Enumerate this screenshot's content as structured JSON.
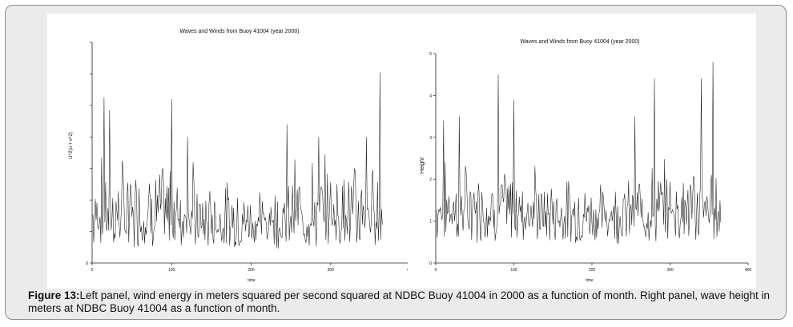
{
  "chart_data": [
    {
      "type": "line",
      "title": "Waves and Winds from Buoy 41004 (year 2000)",
      "xlabel": "time",
      "ylabel": "U^2(u + v^2)",
      "xlim": [
        0,
        400
      ],
      "ylim": [
        0,
        140
      ],
      "xticks": [
        0,
        100,
        200,
        300,
        400
      ],
      "yticks": [
        0,
        20,
        40,
        60,
        80,
        100,
        120,
        140
      ],
      "ytick_labels": [
        "0",
        "",
        "",
        "",
        "",
        "",
        "",
        ""
      ],
      "xtick_labels": [
        "0",
        "100",
        "200",
        "300",
        "400"
      ],
      "series": [
        {
          "color": "#1a1a1a",
          "x_start": 1,
          "x_end": 365,
          "baseline": 22,
          "spread": 40,
          "peaks": [
            [
              15,
              105
            ],
            [
              22,
              97
            ],
            [
              100,
              104
            ],
            [
              120,
              80
            ],
            [
              245,
              88
            ],
            [
              285,
              80
            ],
            [
              345,
              80
            ],
            [
              362,
              121
            ]
          ]
        }
      ],
      "grid": false
    },
    {
      "type": "line",
      "title": "Waves and Winds from Buoy 41004 (year 2000)",
      "xlabel": "time",
      "ylabel": "Height",
      "xlim": [
        0,
        400
      ],
      "ylim": [
        0,
        5
      ],
      "xticks": [
        0,
        100,
        200,
        300,
        400
      ],
      "yticks": [
        0,
        1,
        2,
        3,
        4,
        5
      ],
      "ytick_labels": [
        "0",
        "1",
        "2",
        "3",
        "4",
        "5"
      ],
      "xtick_labels": [
        "0",
        "100",
        "200",
        "300",
        "400"
      ],
      "series": [
        {
          "color": "#1a1a1a",
          "x_start": 1,
          "x_end": 365,
          "baseline": 1.1,
          "spread": 1.0,
          "peaks": [
            [
              10,
              3.4
            ],
            [
              30,
              3.5
            ],
            [
              80,
              4.5
            ],
            [
              100,
              3.9
            ],
            [
              255,
              3.5
            ],
            [
              280,
              4.4
            ],
            [
              340,
              4.4
            ],
            [
              355,
              4.8
            ]
          ]
        }
      ],
      "grid": false
    }
  ],
  "caption": {
    "label": "Figure 13:",
    "text": "Left panel, wind energy in meters squared per second squared at NDBC Buoy 41004 in 2000 as a function of month. Right panel, wave height in meters at NDBC Buoy 41004 as a function of month."
  }
}
